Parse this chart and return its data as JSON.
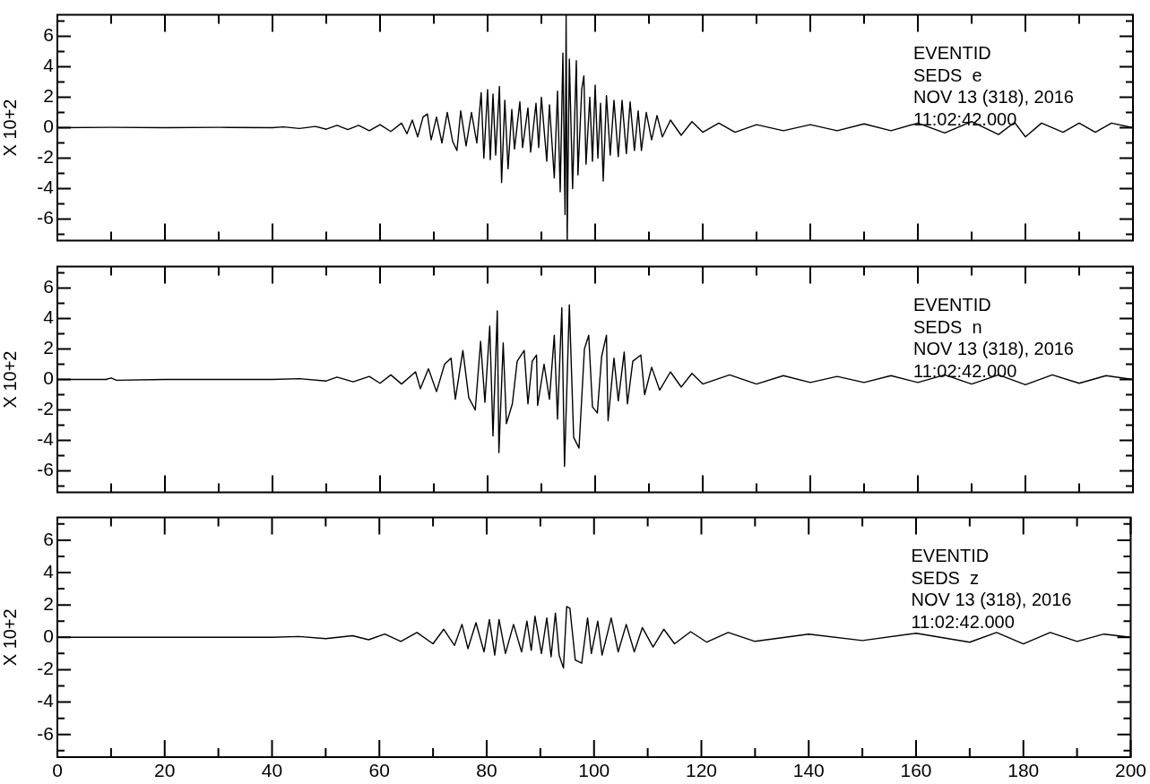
{
  "chart_data": [
    {
      "type": "line",
      "color": "#000000",
      "ylabel": "X 10+2",
      "annotations": [
        "EVENTID",
        "SEDS  e",
        "NOV 13 (318), 2016",
        "11:02:42.000"
      ],
      "tick_labels": "y",
      "xlim": [
        0,
        200
      ],
      "ylim": [
        -7.4,
        7.4
      ],
      "xticks": [
        0,
        {
          "value": 10,
          "label": null
        },
        20,
        {
          "value": 30,
          "label": null
        },
        40,
        {
          "value": 50,
          "label": null
        },
        60,
        {
          "value": 70,
          "label": null
        },
        80,
        {
          "value": 90,
          "label": null
        },
        100,
        {
          "value": 110,
          "label": null
        },
        120,
        {
          "value": 130,
          "label": null
        },
        140,
        {
          "value": 150,
          "label": null
        },
        160,
        {
          "value": 170,
          "label": null
        },
        180,
        {
          "value": 190,
          "label": null
        },
        200
      ],
      "yticks": [
        {
          "value": -7,
          "label": null
        },
        -6,
        {
          "value": -5,
          "label": null
        },
        -4,
        {
          "value": -3,
          "label": null
        },
        -2,
        {
          "value": -1,
          "label": null
        },
        0,
        {
          "value": 1,
          "label": null
        },
        2,
        {
          "value": 3,
          "label": null
        },
        4,
        {
          "value": 5,
          "label": null
        },
        6,
        {
          "value": 7,
          "label": null
        }
      ],
      "x": [
        0,
        10,
        20,
        30,
        40,
        42,
        45,
        48,
        50,
        52,
        54,
        56,
        58,
        60,
        62,
        64,
        65,
        66,
        67,
        68,
        68.8,
        69.5,
        70.5,
        71.5,
        72.5,
        73.5,
        74.3,
        75,
        76,
        77,
        78,
        78.8,
        79.3,
        80,
        80.5,
        81,
        81.5,
        82.2,
        82.6,
        83.2,
        83.8,
        84.5,
        85,
        86,
        86.5,
        87.5,
        88,
        89,
        89.5,
        90,
        91,
        91.5,
        92.4,
        93,
        93.5,
        94,
        94.4,
        94.6,
        94.8,
        95.2,
        95.8,
        96.5,
        96.8,
        97.5,
        97.9,
        98.3,
        99,
        99.5,
        100,
        100.5,
        101,
        101.5,
        102.1,
        102.8,
        103.5,
        104.3,
        105,
        105.8,
        106.5,
        107.3,
        108,
        108.6,
        109.5,
        110.5,
        111.5,
        112.5,
        114,
        116,
        118,
        120,
        123,
        126,
        130,
        135,
        140,
        145,
        150,
        155,
        160,
        165,
        170,
        175,
        178,
        180,
        183,
        187,
        190,
        193,
        196,
        200
      ],
      "values": [
        0,
        0.02,
        0,
        0.02,
        0,
        0.05,
        -0.05,
        0.08,
        -0.1,
        0.15,
        -0.12,
        0.15,
        -0.2,
        0.2,
        -0.25,
        0.3,
        -0.4,
        0.5,
        -0.6,
        0.7,
        0.9,
        -0.8,
        0.7,
        -1.0,
        1.0,
        -0.9,
        -1.5,
        1.1,
        -1.2,
        1.0,
        -1.0,
        2.3,
        -2.0,
        2.5,
        -2.1,
        2.2,
        -1.8,
        2.7,
        -3.6,
        1.8,
        -2.7,
        1.2,
        -1.4,
        1.7,
        -1.3,
        1.3,
        -1.6,
        1.6,
        -1.3,
        2.0,
        -2.2,
        1.5,
        -3.3,
        2.4,
        -4.2,
        4.9,
        -5.7,
        7.4,
        -7.4,
        4.5,
        -4.0,
        4.4,
        -3.1,
        2.5,
        3.4,
        -2.4,
        2.0,
        -2.2,
        2.8,
        -2.0,
        1.6,
        -3.5,
        2.1,
        -1.8,
        1.8,
        -1.9,
        1.8,
        -1.7,
        1.7,
        -1.5,
        1.1,
        -1.5,
        1.0,
        -0.8,
        0.8,
        -0.6,
        0.5,
        -0.5,
        0.4,
        -0.3,
        0.3,
        -0.3,
        0.2,
        -0.2,
        0.2,
        -0.2,
        0.25,
        -0.2,
        0.3,
        -0.35,
        0.4,
        -0.45,
        0.35,
        -0.6,
        0.3,
        -0.3,
        0.3,
        -0.3,
        0.3,
        0
      ]
    },
    {
      "type": "line",
      "color": "#000000",
      "ylabel": "X 10+2",
      "annotations": [
        "EVENTID",
        "SEDS  n",
        "NOV 13 (318), 2016",
        "11:02:42.000"
      ],
      "tick_labels": "y",
      "xlim": [
        0,
        200
      ],
      "ylim": [
        -7.4,
        7.4
      ],
      "xticks": [
        0,
        {
          "value": 10,
          "label": null
        },
        20,
        {
          "value": 30,
          "label": null
        },
        40,
        {
          "value": 50,
          "label": null
        },
        60,
        {
          "value": 70,
          "label": null
        },
        80,
        {
          "value": 90,
          "label": null
        },
        100,
        {
          "value": 110,
          "label": null
        },
        120,
        {
          "value": 130,
          "label": null
        },
        140,
        {
          "value": 150,
          "label": null
        },
        160,
        {
          "value": 170,
          "label": null
        },
        180,
        {
          "value": 190,
          "label": null
        },
        200
      ],
      "yticks": [
        {
          "value": -7,
          "label": null
        },
        -6,
        {
          "value": -5,
          "label": null
        },
        -4,
        {
          "value": -3,
          "label": null
        },
        -2,
        {
          "value": -1,
          "label": null
        },
        0,
        {
          "value": 1,
          "label": null
        },
        2,
        {
          "value": 3,
          "label": null
        },
        4,
        {
          "value": 5,
          "label": null
        },
        6,
        {
          "value": 7,
          "label": null
        }
      ],
      "x": [
        0,
        9,
        10,
        11,
        20,
        30,
        40,
        45,
        50,
        52,
        55,
        58,
        60,
        62,
        64,
        66.6,
        67.5,
        69,
        70.5,
        72,
        73.2,
        74,
        75.4,
        76.5,
        77.7,
        78.7,
        79.5,
        80.4,
        81,
        81.8,
        82.1,
        82.9,
        83.5,
        84.6,
        85.5,
        86.8,
        87.5,
        88.3,
        89.1,
        89.3,
        90.5,
        91.5,
        92.4,
        93,
        93.8,
        94.3,
        95.2,
        96,
        97,
        98,
        98.8,
        99.5,
        100.4,
        101.2,
        102.1,
        102.4,
        103.5,
        104.3,
        105.4,
        106,
        107,
        108.5,
        109.2,
        110.5,
        112,
        114,
        116,
        118,
        120,
        125,
        130,
        135,
        140,
        145,
        150,
        155,
        160,
        165,
        170,
        175,
        180,
        185,
        190,
        195,
        200
      ],
      "values": [
        0,
        0,
        0.1,
        -0.05,
        0,
        0,
        0,
        0.05,
        -0.1,
        0.15,
        -0.15,
        0.2,
        -0.25,
        0.3,
        -0.3,
        0.5,
        -0.6,
        0.7,
        -0.8,
        1.0,
        1.4,
        -1.3,
        1.9,
        -1.2,
        -2.0,
        2.5,
        -1.5,
        3.5,
        -3.7,
        4.5,
        -4.8,
        2.4,
        -2.9,
        -1.6,
        1.2,
        1.9,
        -1.6,
        1.2,
        1.6,
        -1.7,
        1.0,
        -1.3,
        2.9,
        -2.6,
        4.7,
        -5.7,
        4.9,
        -3.8,
        -4.5,
        2.0,
        2.9,
        -1.8,
        -2.2,
        1.5,
        2.9,
        -2.7,
        1.4,
        -1.4,
        1.8,
        -1.6,
        1.2,
        1.6,
        -1.0,
        0.8,
        -0.7,
        0.5,
        -0.5,
        0.4,
        -0.3,
        0.3,
        -0.3,
        0.25,
        -0.2,
        0.2,
        -0.2,
        0.25,
        -0.2,
        0.3,
        -0.3,
        0.3,
        -0.35,
        0.3,
        -0.25,
        0.25,
        0
      ]
    },
    {
      "type": "line",
      "color": "#000000",
      "ylabel": "X 10+2",
      "annotations": [
        "EVENTID",
        "SEDS  z",
        "NOV 13 (318), 2016",
        "11:02:42.000"
      ],
      "xlim": [
        0,
        200
      ],
      "ylim": [
        -7.4,
        7.4
      ],
      "xticks": [
        0,
        {
          "value": 10,
          "label": null
        },
        20,
        {
          "value": 30,
          "label": null
        },
        40,
        {
          "value": 50,
          "label": null
        },
        60,
        {
          "value": 70,
          "label": null
        },
        80,
        {
          "value": 90,
          "label": null
        },
        100,
        {
          "value": 110,
          "label": null
        },
        120,
        {
          "value": 130,
          "label": null
        },
        140,
        {
          "value": 150,
          "label": null
        },
        160,
        {
          "value": 170,
          "label": null
        },
        180,
        {
          "value": 190,
          "label": null
        },
        200
      ],
      "yticks": [
        {
          "value": -7,
          "label": null
        },
        -6,
        {
          "value": -5,
          "label": null
        },
        -4,
        {
          "value": -3,
          "label": null
        },
        -2,
        {
          "value": -1,
          "label": null
        },
        0,
        {
          "value": 1,
          "label": null
        },
        2,
        {
          "value": 3,
          "label": null
        },
        4,
        {
          "value": 5,
          "label": null
        },
        6,
        {
          "value": 7,
          "label": null
        }
      ],
      "x": [
        0,
        10,
        20,
        30,
        40,
        45,
        50,
        55,
        58,
        61,
        64,
        67,
        70,
        72,
        74,
        75.4,
        76.5,
        78,
        79.5,
        80.5,
        81.5,
        82.3,
        83.5,
        85,
        86.5,
        87.5,
        88.3,
        89,
        90.2,
        91.2,
        92,
        92.8,
        93.5,
        94.3,
        94.9,
        95.5,
        96.5,
        97.7,
        98.8,
        99.5,
        100.7,
        101.5,
        103.2,
        104.5,
        106,
        107.5,
        109,
        111,
        113,
        115,
        118,
        121,
        125,
        130,
        140,
        150,
        160,
        170,
        175,
        180,
        185,
        190,
        195,
        200
      ],
      "values": [
        0,
        0,
        0,
        0,
        0,
        0.05,
        -0.08,
        0.1,
        -0.15,
        0.2,
        -0.25,
        0.3,
        -0.4,
        0.5,
        -0.5,
        0.8,
        -0.7,
        0.9,
        -0.9,
        1.1,
        -1.1,
        1.1,
        -1.0,
        0.8,
        -0.9,
        1.0,
        -0.8,
        1.3,
        -1.0,
        1.2,
        -1.2,
        1.5,
        -1.1,
        -1.9,
        1.9,
        1.8,
        -1.4,
        -1.6,
        1.2,
        -1.0,
        1.0,
        -1.1,
        1.2,
        -0.9,
        0.8,
        -0.9,
        0.6,
        -0.6,
        0.5,
        -0.4,
        0.35,
        -0.3,
        0.3,
        -0.25,
        0.2,
        -0.2,
        0.25,
        -0.3,
        0.3,
        -0.4,
        0.3,
        -0.25,
        0.2,
        0
      ]
    }
  ]
}
